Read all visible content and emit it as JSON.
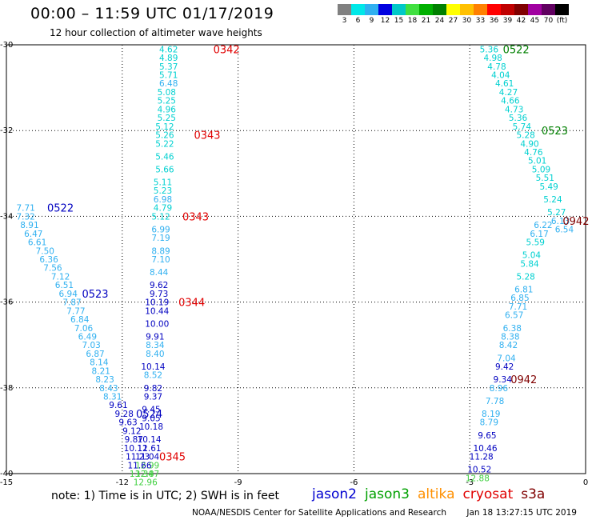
{
  "header": {
    "title": "00:00 – 11:59 UTC 01/17/2019",
    "subtitle": "12 hour collection of altimeter wave heights"
  },
  "legend": {
    "labels": [
      "3",
      "6",
      "9",
      "12",
      "15",
      "18",
      "21",
      "24",
      "27",
      "30",
      "33",
      "36",
      "39",
      "42",
      "45",
      "70",
      "(ft)"
    ],
    "colors": [
      "#808080",
      "#00e8e8",
      "#30b0f0",
      "#0000e0",
      "#00c8c8",
      "#40e040",
      "#00b000",
      "#008000",
      "#ffff00",
      "#ffc000",
      "#ff8000",
      "#ff0000",
      "#c00000",
      "#800000",
      "#a000a0",
      "#600060",
      "#000000"
    ]
  },
  "map": {
    "x_ticks": [
      "-15",
      "-12",
      "-9",
      "-6",
      "-3",
      "0"
    ],
    "y_ticks": [
      "-30",
      "-32",
      "-34",
      "-36",
      "-38",
      "-40"
    ]
  },
  "chart_data": {
    "type": "scatter",
    "title": "00:00 – 11:59 UTC 01/17/2019",
    "xlim": [
      -15,
      0
    ],
    "ylim": [
      -40,
      -30
    ],
    "grid": true,
    "tracks": [
      {
        "time": "0342",
        "color": "#e00000",
        "label_pos": [
          -9.3,
          -30.1
        ],
        "points": [
          [
            -10.8,
            -30.1,
            "4.62",
            "#00d0d0"
          ],
          [
            -10.8,
            -30.3,
            "4.89",
            "#00d0d0"
          ],
          [
            -10.8,
            -30.5,
            "5.37",
            "#00d0d0"
          ],
          [
            -10.8,
            -30.7,
            "5.71",
            "#00d0d0"
          ],
          [
            -10.8,
            -30.9,
            "6.48",
            "#30b0f0"
          ],
          [
            -10.85,
            -31.1,
            "5.08",
            "#00d0d0"
          ],
          [
            -10.85,
            -31.3,
            "5.25",
            "#00d0d0"
          ],
          [
            -10.85,
            -31.5,
            "4.96",
            "#00d0d0"
          ],
          [
            -10.85,
            -31.7,
            "5.25",
            "#00d0d0"
          ],
          [
            -10.9,
            -31.9,
            "5.12",
            "#00d0d0"
          ],
          [
            -10.9,
            -32.1,
            "5.26",
            "#00d0d0"
          ],
          [
            -10.9,
            -32.3,
            "5.22",
            "#00d0d0"
          ],
          [
            -10.9,
            -32.6,
            "5.46",
            "#00d0d0"
          ],
          [
            -10.9,
            -32.9,
            "5.66",
            "#00d0d0"
          ],
          [
            -10.95,
            -33.2,
            "5.11",
            "#00d0d0"
          ],
          [
            -10.95,
            -33.4,
            "5.23",
            "#00d0d0"
          ],
          [
            -10.95,
            -33.6,
            "6.98",
            "#30b0f0"
          ],
          [
            -10.95,
            -33.8,
            "4.79",
            "#00d0d0"
          ],
          [
            -11.0,
            -34.0,
            "5.12",
            "#00d0d0"
          ],
          [
            -11.0,
            -34.3,
            "6.99",
            "#30b0f0"
          ],
          [
            -11.0,
            -34.5,
            "7.19",
            "#30b0f0"
          ],
          [
            -11.0,
            -34.8,
            "8.89",
            "#30b0f0"
          ],
          [
            -11.0,
            -35.0,
            "7.10",
            "#30b0f0"
          ],
          [
            -11.05,
            -35.3,
            "8.44",
            "#30b0f0"
          ],
          [
            -11.05,
            -35.6,
            "9.62",
            "#0000c0"
          ],
          [
            -11.05,
            -35.8,
            "9.73",
            "#0000c0"
          ],
          [
            -11.1,
            -36.0,
            "10.19",
            "#0000c0"
          ],
          [
            -11.1,
            -36.2,
            "10.44",
            "#0000c0"
          ],
          [
            -11.1,
            -36.5,
            "10.00",
            "#0000c0"
          ],
          [
            -11.15,
            -36.8,
            "9.91",
            "#0000c0"
          ],
          [
            -11.15,
            -37.0,
            "8.34",
            "#30b0f0"
          ],
          [
            -11.15,
            -37.2,
            "8.40",
            "#30b0f0"
          ],
          [
            -11.2,
            -37.5,
            "10.14",
            "#0000c0"
          ],
          [
            -11.2,
            -37.7,
            "8.52",
            "#30b0f0"
          ],
          [
            -11.2,
            -38.0,
            "9.82",
            "#0000c0"
          ],
          [
            -11.2,
            -38.2,
            "9.37",
            "#0000c0"
          ],
          [
            -11.25,
            -38.5,
            "9.45",
            "#0000c0"
          ],
          [
            -11.25,
            -38.7,
            "9.05",
            "#0000c0"
          ],
          [
            -11.25,
            -38.9,
            "10.18",
            "#0000c0"
          ],
          [
            -11.3,
            -39.2,
            "10.14",
            "#0000c0"
          ],
          [
            -11.3,
            -39.4,
            "11.61",
            "#0000c0"
          ],
          [
            -11.35,
            -39.6,
            "11.04",
            "#0000c0"
          ],
          [
            -11.35,
            -39.8,
            "12.99",
            "#40d040"
          ],
          [
            -11.35,
            -40.0,
            "12.87",
            "#40d040"
          ],
          [
            -11.4,
            -40.2,
            "12.96",
            "#40d040"
          ]
        ]
      },
      {
        "time": "0343",
        "color": "#e00000",
        "label_pos": [
          -9.8,
          -32.1
        ],
        "points": []
      },
      {
        "time": "0343",
        "color": "#e00000",
        "label_pos": [
          -10.1,
          -34.0
        ],
        "points": []
      },
      {
        "time": "0344",
        "color": "#e00000",
        "label_pos": [
          -10.2,
          -36.0
        ],
        "points": []
      },
      {
        "time": "0345",
        "color": "#e00000",
        "label_pos": [
          -10.7,
          -39.6
        ],
        "points": []
      },
      {
        "time": "0522",
        "color": "#0000c0",
        "label_pos": [
          -13.6,
          -33.8
        ],
        "points": [
          [
            -14.5,
            -33.8,
            "7.71",
            "#30b0f0"
          ],
          [
            -14.5,
            -34.0,
            "7.32",
            "#30b0f0"
          ],
          [
            -14.4,
            -34.2,
            "8.91",
            "#30b0f0"
          ],
          [
            -14.3,
            -34.4,
            "6.47",
            "#30b0f0"
          ],
          [
            -14.2,
            -34.6,
            "6.61",
            "#30b0f0"
          ],
          [
            -14.0,
            -34.8,
            "7.50",
            "#30b0f0"
          ],
          [
            -13.9,
            -35.0,
            "6.36",
            "#30b0f0"
          ],
          [
            -13.8,
            -35.2,
            "7.56",
            "#30b0f0"
          ],
          [
            -13.6,
            -35.4,
            "7.12",
            "#30b0f0"
          ],
          [
            -13.5,
            -35.6,
            "6.51",
            "#30b0f0"
          ],
          [
            -13.4,
            -35.8,
            "6.94",
            "#30b0f0"
          ],
          [
            -13.3,
            -36.0,
            "7.87",
            "#30b0f0"
          ],
          [
            -13.2,
            -36.2,
            "7.77",
            "#30b0f0"
          ],
          [
            -13.1,
            -36.4,
            "6.84",
            "#30b0f0"
          ],
          [
            -13.0,
            -36.6,
            "7.06",
            "#30b0f0"
          ],
          [
            -12.9,
            -36.8,
            "6.49",
            "#30b0f0"
          ],
          [
            -12.8,
            -37.0,
            "7.03",
            "#30b0f0"
          ],
          [
            -12.7,
            -37.2,
            "6.87",
            "#30b0f0"
          ],
          [
            -12.6,
            -37.4,
            "8.14",
            "#30b0f0"
          ],
          [
            -12.55,
            -37.6,
            "8.21",
            "#30b0f0"
          ],
          [
            -12.45,
            -37.8,
            "8.23",
            "#30b0f0"
          ],
          [
            -12.35,
            -38.0,
            "8.43",
            "#30b0f0"
          ],
          [
            -12.25,
            -38.2,
            "8.31",
            "#30b0f0"
          ],
          [
            -12.1,
            -38.4,
            "9.61",
            "#0000c0"
          ],
          [
            -11.95,
            -38.6,
            "9.28",
            "#0000c0"
          ],
          [
            -11.85,
            -38.8,
            "9.63",
            "#0000c0"
          ],
          [
            -11.75,
            -39.0,
            "9.12",
            "#0000c0"
          ],
          [
            -11.7,
            -39.2,
            "9.87",
            "#0000c0"
          ],
          [
            -11.65,
            -39.4,
            "10.12",
            "#0000c0"
          ],
          [
            -11.6,
            -39.6,
            "11.23",
            "#0000c0"
          ],
          [
            -11.55,
            -39.8,
            "11.66",
            "#0000c0"
          ],
          [
            -11.5,
            -40.0,
            "13.34",
            "#40d040"
          ]
        ]
      },
      {
        "time": "0523",
        "color": "#0000c0",
        "label_pos": [
          -12.7,
          -35.8
        ],
        "points": []
      },
      {
        "time": "0524",
        "color": "#0000c0",
        "label_pos": [
          -11.3,
          -38.6
        ],
        "points": []
      },
      {
        "time": "0522",
        "color": "#008000",
        "label_pos": [
          -1.8,
          -30.1
        ],
        "points": [
          [
            -2.5,
            -30.1,
            "5.36",
            "#00d0d0"
          ],
          [
            -2.4,
            -30.3,
            "4.98",
            "#00d0d0"
          ],
          [
            -2.3,
            -30.5,
            "4.78",
            "#00d0d0"
          ],
          [
            -2.2,
            -30.7,
            "4.04",
            "#00d0d0"
          ],
          [
            -2.1,
            -30.9,
            "4.61",
            "#00d0d0"
          ],
          [
            -2.0,
            -31.1,
            "4.27",
            "#00d0d0"
          ],
          [
            -1.95,
            -31.3,
            "4.66",
            "#00d0d0"
          ],
          [
            -1.85,
            -31.5,
            "4.73",
            "#00d0d0"
          ],
          [
            -1.75,
            -31.7,
            "5.36",
            "#00d0d0"
          ],
          [
            -1.65,
            -31.9,
            "5.74",
            "#00d0d0"
          ],
          [
            -1.55,
            -32.1,
            "5.28",
            "#00d0d0"
          ],
          [
            -1.45,
            -32.3,
            "4.90",
            "#00d0d0"
          ],
          [
            -1.35,
            -32.5,
            "4.76",
            "#00d0d0"
          ],
          [
            -1.25,
            -32.7,
            "5.01",
            "#00d0d0"
          ],
          [
            -1.15,
            -32.9,
            "5.09",
            "#00d0d0"
          ],
          [
            -1.05,
            -33.1,
            "5.51",
            "#00d0d0"
          ],
          [
            -0.95,
            -33.3,
            "5.49",
            "#00d0d0"
          ],
          [
            -0.85,
            -33.6,
            "5.24",
            "#00d0d0"
          ],
          [
            -0.75,
            -33.9,
            "5.27",
            "#00d0d0"
          ],
          [
            -0.65,
            -34.1,
            "6.13",
            "#30b0f0"
          ],
          [
            -0.55,
            -34.3,
            "6.54",
            "#30b0f0"
          ]
        ]
      },
      {
        "time": "0523",
        "color": "#008000",
        "label_pos": [
          -0.8,
          -32.0
        ],
        "points": []
      },
      {
        "time": "0942",
        "color": "#800000",
        "label_pos": [
          -1.6,
          -37.8
        ],
        "points": [
          [
            -1.1,
            -34.2,
            "6.22",
            "#30b0f0"
          ],
          [
            -1.2,
            -34.4,
            "6.17",
            "#30b0f0"
          ],
          [
            -1.3,
            -34.6,
            "5.59",
            "#00d0d0"
          ],
          [
            -1.4,
            -34.9,
            "5.04",
            "#00d0d0"
          ],
          [
            -1.45,
            -35.1,
            "5.84",
            "#00d0d0"
          ],
          [
            -1.55,
            -35.4,
            "5.28",
            "#00d0d0"
          ],
          [
            -1.6,
            -35.7,
            "6.81",
            "#30b0f0"
          ],
          [
            -1.7,
            -35.9,
            "6.85",
            "#30b0f0"
          ],
          [
            -1.75,
            -36.1,
            "7.71",
            "#30b0f0"
          ],
          [
            -1.85,
            -36.3,
            "6.57",
            "#30b0f0"
          ],
          [
            -1.9,
            -36.6,
            "6.38",
            "#30b0f0"
          ],
          [
            -1.95,
            -36.8,
            "8.38",
            "#30b0f0"
          ],
          [
            -2.0,
            -37.0,
            "8.42",
            "#30b0f0"
          ],
          [
            -2.05,
            -37.3,
            "7.04",
            "#30b0f0"
          ],
          [
            -2.1,
            -37.5,
            "9.42",
            "#0000c0"
          ],
          [
            -2.15,
            -37.8,
            "9.34",
            "#0000c0"
          ],
          [
            -2.25,
            -38.0,
            "8.96",
            "#30b0f0"
          ],
          [
            -2.35,
            -38.3,
            "7.78",
            "#30b0f0"
          ],
          [
            -2.45,
            -38.6,
            "8.19",
            "#30b0f0"
          ],
          [
            -2.5,
            -38.8,
            "8.79",
            "#30b0f0"
          ],
          [
            -2.55,
            -39.1,
            "9.65",
            "#0000c0"
          ],
          [
            -2.6,
            -39.4,
            "10.46",
            "#0000c0"
          ],
          [
            -2.7,
            -39.6,
            "11.28",
            "#0000c0"
          ],
          [
            -2.75,
            -39.9,
            "10.52",
            "#0000c0"
          ],
          [
            -2.8,
            -40.1,
            "12.88",
            "#40d040"
          ]
        ]
      },
      {
        "time": "0942",
        "color": "#800000",
        "label_pos": [
          -0.25,
          -34.1
        ],
        "points": []
      }
    ]
  },
  "note": "note:  1) Time is in UTC;  2) SWH is in feet",
  "satellites": [
    {
      "name": "jason2",
      "color": "#0000d0"
    },
    {
      "name": "jason3",
      "color": "#00a000"
    },
    {
      "name": "altika",
      "color": "#ff9000"
    },
    {
      "name": "cryosat",
      "color": "#e00000"
    },
    {
      "name": "s3a",
      "color": "#800000"
    }
  ],
  "footer": {
    "agency": "NOAA/NESDIS Center for Satellite Applications and Research",
    "timestamp": "Jan 18 13:27:15 UTC 2019"
  }
}
